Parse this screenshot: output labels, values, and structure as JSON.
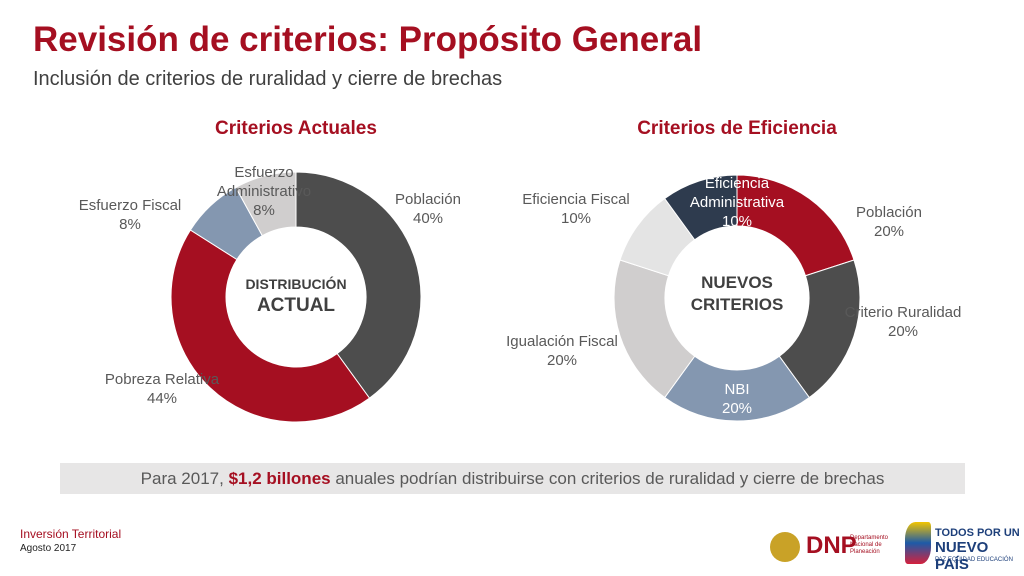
{
  "header": {
    "title": "Revisión de criterios: Propósito General",
    "subtitle": "Inclusión de criterios de ruralidad y cierre de brechas"
  },
  "chart_data": [
    {
      "type": "donut",
      "title": "Criterios Actuales",
      "center_label": [
        "DISTRIBUCIÓN",
        "ACTUAL"
      ],
      "categories": [
        "Población",
        "Pobreza Relativa",
        "Esfuerzo Fiscal",
        "Esfuerzo Administrativo"
      ],
      "values": [
        40,
        44,
        8,
        8
      ],
      "value_labels": [
        "40%",
        "44%",
        "8%",
        "8%"
      ],
      "colors": [
        "#4d4d4d",
        "#a50f21",
        "#8497b0",
        "#d0cece"
      ]
    },
    {
      "type": "donut",
      "title": "Criterios de Eficiencia",
      "center_label": [
        "NUEVOS",
        "CRITERIOS"
      ],
      "categories": [
        "Población",
        "Criterio Ruralidad",
        "NBI",
        "Igualación Fiscal",
        "Eficiencia Fiscal",
        "Eficiencia Administrativa"
      ],
      "values": [
        20,
        20,
        20,
        20,
        10,
        10
      ],
      "value_labels": [
        "20%",
        "20%",
        "20%",
        "20%",
        "10%",
        "10%"
      ],
      "colors": [
        "#a50f21",
        "#4d4d4d",
        "#8497b0",
        "#d0cece",
        "#e4e4e4",
        "#2e3b4e"
      ]
    }
  ],
  "banner": {
    "before": "Para 2017, ",
    "bold": "$1,2 billones",
    "after": " anuales podrían distribuirse con criterios de ruralidad y cierre de brechas"
  },
  "footer": {
    "section": "Inversión Territorial",
    "date": "Agosto 2017"
  },
  "logos": {
    "dnp": "DNP",
    "dnp_name": "Departamento Nacional de Planeación",
    "gov_1": "TODOS POR UN",
    "gov_2": "NUEVO PAÍS",
    "gov_3": "PAZ EQUIDAD EDUCACIÓN"
  }
}
